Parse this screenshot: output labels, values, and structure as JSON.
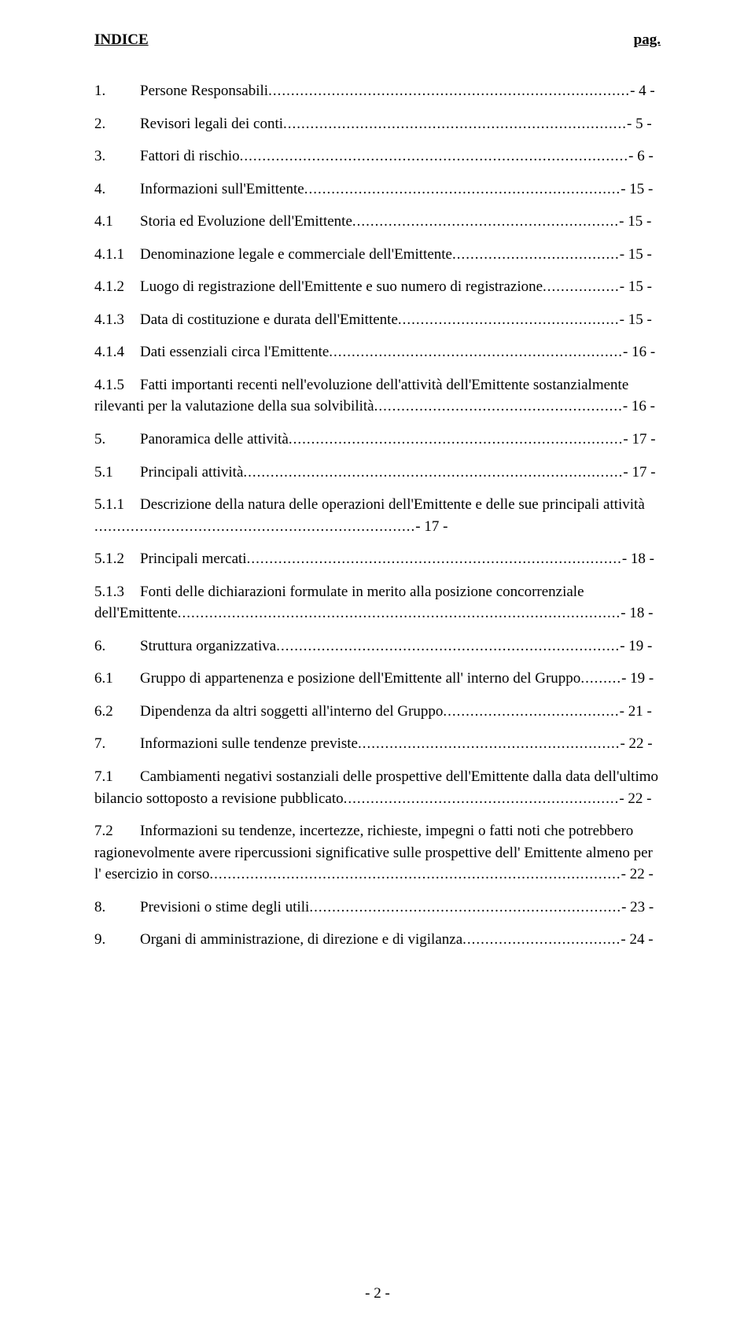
{
  "header": {
    "title": "INDICE",
    "page_label": "pag."
  },
  "entries": [
    {
      "num": "1.",
      "title": "Persone Responsabili",
      "page": "- 4 -"
    },
    {
      "num": "2.",
      "title": "Revisori legali dei conti",
      "page": "- 5 -"
    },
    {
      "num": "3.",
      "title": "Fattori di rischio",
      "page": "- 6 -"
    },
    {
      "num": "4.",
      "title": "Informazioni sull'Emittente",
      "page": "- 15 -"
    },
    {
      "num": "4.1",
      "title": "Storia ed Evoluzione dell'Emittente",
      "page": "- 15 -"
    },
    {
      "num": "4.1.1",
      "title": "Denominazione legale e commerciale dell'Emittente",
      "page": "- 15 -"
    },
    {
      "num": "4.1.2",
      "title": "Luogo di registrazione dell'Emittente e suo numero di registrazione",
      "page": "- 15 -"
    },
    {
      "num": "4.1.3",
      "title": "Data di costituzione e durata dell'Emittente",
      "page": "- 15 -"
    },
    {
      "num": "4.1.4",
      "title": "Dati essenziali circa l'Emittente",
      "page": "- 16 -"
    },
    {
      "num": "4.1.5",
      "title": "Fatti importanti recenti nell'evoluzione dell'attività dell'Emittente sostanzialmente rilevanti per la valutazione della sua solvibilità",
      "page": "- 16 -"
    },
    {
      "num": "5.",
      "title": "Panoramica delle attività",
      "page": "- 17 -"
    },
    {
      "num": "5.1",
      "title": "Principali attività",
      "page": "- 17 -"
    },
    {
      "num": "5.1.1",
      "title": "Descrizione della natura delle operazioni dell'Emittente e delle sue principali attività",
      "page": "- 17 -",
      "continuation": true
    },
    {
      "num": "5.1.2",
      "title": "Principali mercati",
      "page": "- 18 -"
    },
    {
      "num": "5.1.3",
      "title": "Fonti delle dichiarazioni formulate in merito alla posizione concorrenziale dell'Emittente",
      "page": "- 18 -"
    },
    {
      "num": "6.",
      "title": "Struttura organizzativa",
      "page": "- 19 -"
    },
    {
      "num": "6.1",
      "title": "Gruppo di appartenenza e posizione dell'Emittente all' interno del Gruppo",
      "page": "- 19 -"
    },
    {
      "num": "6.2",
      "title": "Dipendenza da altri soggetti all'interno del Gruppo",
      "page": "- 21 -"
    },
    {
      "num": "7.",
      "title": "Informazioni sulle tendenze previste",
      "page": "- 22 -"
    },
    {
      "num": "7.1",
      "title": "Cambiamenti negativi sostanziali delle prospettive dell'Emittente dalla data dell'ultimo bilancio sottoposto a revisione pubblicato",
      "page": "- 22 -"
    },
    {
      "num": "7.2",
      "title": "Informazioni su tendenze, incertezze, richieste, impegni o fatti noti che potrebbero ragionevolmente avere ripercussioni significative sulle prospettive dell' Emittente almeno per l' esercizio in corso",
      "page": "- 22 -"
    },
    {
      "num": "8.",
      "title": "Previsioni o stime degli utili",
      "page": "- 23 -"
    },
    {
      "num": "9.",
      "title": "Organi di amministrazione, di direzione e di vigilanza",
      "page": "- 24 -"
    }
  ],
  "footer": "- 2 -"
}
